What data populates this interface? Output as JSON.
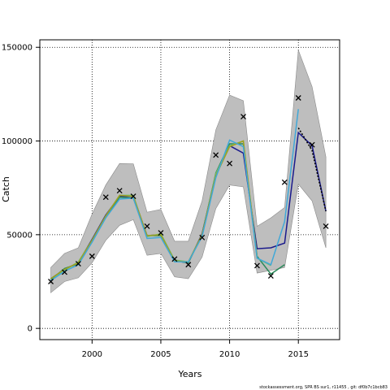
{
  "chart_data": {
    "type": "line",
    "title": "",
    "xlabel": "Years",
    "ylabel": "Catch",
    "xlim": [
      1996.2,
      2018.0
    ],
    "ylim": [
      -6000,
      154000
    ],
    "xticks": [
      2000,
      2005,
      2010,
      2015
    ],
    "yticks": [
      0,
      50000,
      100000,
      150000
    ],
    "grid": true,
    "grid_style": "dotted",
    "caption": "stockassessment.org, SPR BS sur1, r11455 , git: df0b7c1bcb83",
    "band": {
      "x": [
        1997,
        1998,
        1999,
        2000,
        2001,
        2002,
        2003,
        2004,
        2005,
        2006,
        2007,
        2008,
        2009,
        2010,
        2011,
        2012,
        2013,
        2014,
        2015,
        2016,
        2017
      ],
      "upper": [
        32500,
        40000,
        43000,
        61000,
        76500,
        88000,
        87800,
        62000,
        63500,
        46500,
        46500,
        68000,
        106000,
        124500,
        121500,
        54500,
        59000,
        64500,
        148500,
        129000,
        91500
      ],
      "lower": [
        19000,
        25000,
        27000,
        35000,
        47000,
        55000,
        58000,
        39000,
        40000,
        27500,
        26500,
        38000,
        64000,
        76500,
        75500,
        29500,
        31000,
        32500,
        77000,
        68000,
        43000
      ],
      "color": "#bebebe"
    },
    "series": [
      {
        "color": "#1a1a8c",
        "x": [
          1997,
          1998,
          1999,
          2000,
          2001,
          2002,
          2003,
          2004,
          2005,
          2006,
          2007,
          2008,
          2009,
          2010,
          2011,
          2012,
          2013,
          2014,
          2015,
          2016,
          2017
        ],
        "y": [
          26500,
          31500,
          35000,
          47500,
          60500,
          70500,
          70500,
          49500,
          50000,
          36000,
          35000,
          50500,
          82000,
          97500,
          93500,
          42500,
          43000,
          45500,
          104500,
          97500,
          62500
        ]
      },
      {
        "color": "#2b8a5a",
        "x": [
          1997,
          1998,
          1999,
          2000,
          2001,
          2002,
          2003,
          2004,
          2005,
          2006,
          2007,
          2008,
          2009,
          2010,
          2011,
          2012,
          2013,
          2014
        ],
        "y": [
          26000,
          32000,
          34500,
          47000,
          59500,
          70000,
          69500,
          49500,
          49500,
          36000,
          35000,
          50000,
          83000,
          98500,
          98500,
          38500,
          29000,
          34000
        ]
      },
      {
        "color": "#6fbf6f",
        "x": [
          1997,
          1998,
          1999,
          2000,
          2001,
          2002,
          2003,
          2004,
          2005,
          2006,
          2007,
          2008,
          2009,
          2010,
          2011,
          2012,
          2013
        ],
        "y": [
          26500,
          31000,
          35500,
          47000,
          60000,
          71000,
          71000,
          49000,
          50500,
          36500,
          35500,
          49500,
          82500,
          97500,
          100000,
          37500,
          33500
        ]
      },
      {
        "color": "#a0a020",
        "x": [
          1997,
          1998,
          1999,
          2000,
          2001,
          2002,
          2003,
          2004,
          2005,
          2006,
          2007,
          2008,
          2009,
          2010,
          2011,
          2012
        ],
        "y": [
          26500,
          31500,
          35000,
          47000,
          60000,
          71000,
          70500,
          49500,
          50000,
          36000,
          35500,
          50000,
          81500,
          97000,
          100000,
          38500
        ]
      },
      {
        "color": "#40a8d8",
        "x": [
          1997,
          1998,
          1999,
          2000,
          2001,
          2002,
          2003,
          2004,
          2005,
          2006,
          2007,
          2008,
          2009,
          2010,
          2011,
          2012,
          2013,
          2014,
          2015
        ],
        "y": [
          25500,
          30500,
          34000,
          46000,
          59000,
          69000,
          69500,
          48000,
          48500,
          35500,
          35500,
          49000,
          80500,
          100500,
          97000,
          37500,
          34000,
          57000,
          117000
        ]
      },
      {
        "color": "#000000",
        "dashed": true,
        "x": [
          2015,
          2016,
          2017
        ],
        "y": [
          107000,
          95000,
          62500
        ]
      }
    ],
    "observations": {
      "marker": "x",
      "x": [
        1997,
        1998,
        1999,
        2000,
        2001,
        2002,
        2003,
        2004,
        2005,
        2006,
        2007,
        2008,
        2009,
        2010,
        2011,
        2012,
        2013,
        2014,
        2015,
        2016,
        2017
      ],
      "y": [
        25000,
        30000,
        34500,
        38500,
        70000,
        73500,
        70500,
        54500,
        51000,
        37000,
        34000,
        48500,
        92500,
        88000,
        113000,
        33500,
        28000,
        78000,
        123000,
        98000,
        54500
      ]
    }
  }
}
